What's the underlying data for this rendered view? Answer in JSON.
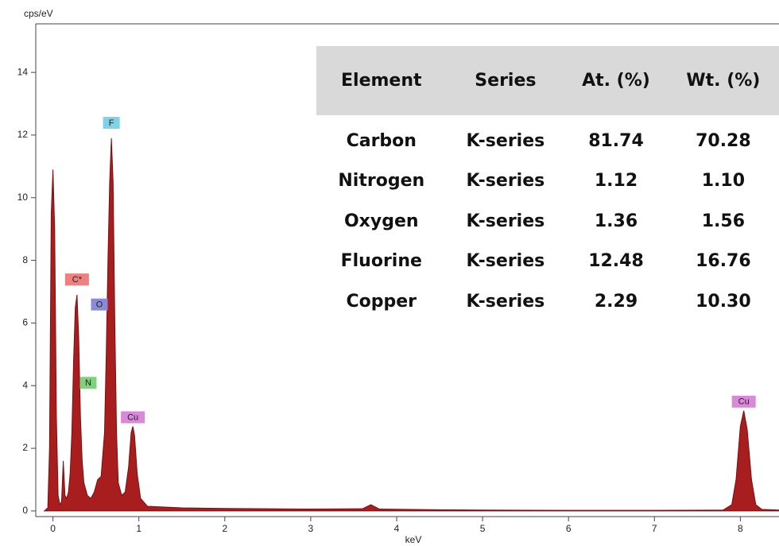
{
  "chart_data": {
    "type": "area",
    "y_label": "cps/eV",
    "x_label": "keV",
    "xlim": [
      -0.2,
      8.45
    ],
    "ylim": [
      -0.18,
      15.55
    ],
    "xticks": [
      0,
      1,
      2,
      3,
      4,
      5,
      6,
      7,
      8
    ],
    "yticks": [
      0,
      2,
      4,
      6,
      8,
      10,
      12,
      14
    ],
    "color": "#a81e1e",
    "x": [
      -0.1,
      -0.06,
      -0.04,
      -0.02,
      0,
      0.02,
      0.04,
      0.06,
      0.08,
      0.1,
      0.12,
      0.14,
      0.16,
      0.18,
      0.2,
      0.22,
      0.24,
      0.26,
      0.28,
      0.3,
      0.32,
      0.34,
      0.36,
      0.38,
      0.4,
      0.44,
      0.48,
      0.52,
      0.56,
      0.6,
      0.62,
      0.64,
      0.66,
      0.68,
      0.7,
      0.72,
      0.74,
      0.76,
      0.8,
      0.84,
      0.88,
      0.91,
      0.93,
      0.95,
      0.98,
      1.02,
      1.1,
      1.5,
      2,
      2.5,
      3,
      3.6,
      3.7,
      3.8,
      4.5,
      5,
      6,
      7,
      7.8,
      7.9,
      7.95,
      8.0,
      8.04,
      8.08,
      8.13,
      8.18,
      8.25,
      8.45
    ],
    "values": [
      0,
      0.1,
      2,
      9.5,
      10.9,
      9,
      3,
      0.5,
      0.2,
      0.3,
      1.6,
      0.5,
      0.4,
      0.6,
      1.2,
      2.5,
      4.8,
      6.5,
      6.9,
      5.5,
      3,
      1.6,
      0.9,
      0.7,
      0.5,
      0.4,
      0.6,
      1.0,
      1.1,
      2.5,
      5,
      8,
      10.5,
      11.9,
      10.5,
      6,
      2.5,
      0.9,
      0.5,
      0.6,
      1.4,
      2.5,
      2.7,
      2.4,
      1.2,
      0.4,
      0.15,
      0.1,
      0.08,
      0.07,
      0.06,
      0.07,
      0.2,
      0.06,
      0.04,
      0.03,
      0.02,
      0.02,
      0.03,
      0.2,
      1.0,
      2.7,
      3.2,
      2.6,
      1.0,
      0.2,
      0.05,
      0.03
    ],
    "annotations": [
      {
        "text": "F",
        "x": 0.68,
        "y": 12.2,
        "color": "#7fd3e8"
      },
      {
        "text": "C*",
        "x": 0.28,
        "y": 7.2,
        "color": "#f08080"
      },
      {
        "text": "O",
        "x": 0.54,
        "y": 6.4,
        "color": "#8a8ad8"
      },
      {
        "text": "N",
        "x": 0.41,
        "y": 3.9,
        "color": "#7fd17f"
      },
      {
        "text": "Cu",
        "x": 0.93,
        "y": 2.8,
        "color": "#d88ad8"
      },
      {
        "text": "Cu",
        "x": 8.04,
        "y": 3.3,
        "color": "#d88ad8"
      }
    ]
  },
  "table": {
    "columns": [
      "Element",
      "Series",
      "At. (%)",
      "Wt. (%)"
    ],
    "rows": [
      [
        "Carbon",
        "K-series",
        "81.74",
        "70.28"
      ],
      [
        "Nitrogen",
        "K-series",
        "1.12",
        "1.10"
      ],
      [
        "Oxygen",
        "K-series",
        "1.36",
        "1.56"
      ],
      [
        "Fluorine",
        "K-series",
        "12.48",
        "16.76"
      ],
      [
        "Copper",
        "K-series",
        "2.29",
        "10.30"
      ]
    ]
  }
}
